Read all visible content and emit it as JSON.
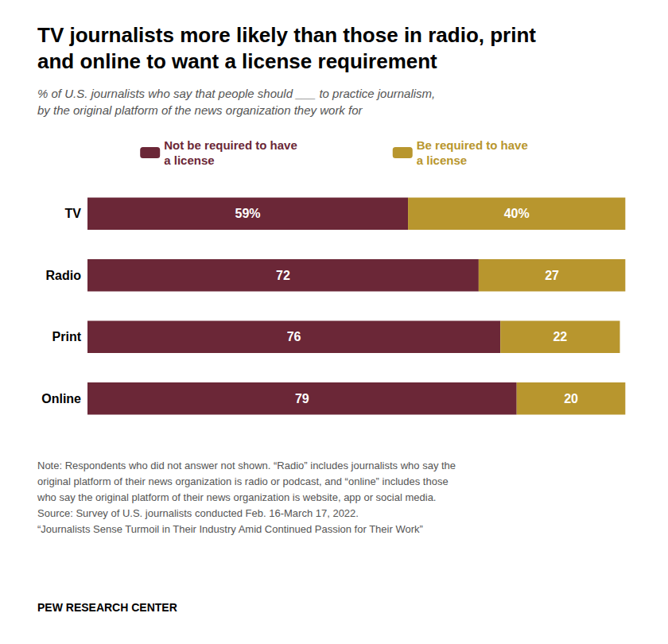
{
  "chart_data": {
    "type": "bar",
    "orientation": "horizontal",
    "stacked": true,
    "title": "TV journalists more likely than those in radio, print\nand online to want a license requirement",
    "subtitle": "% of U.S. journalists who say that people should ___ to practice journalism,\nby the original platform of the news organization they work for",
    "categories": [
      "TV",
      "Radio",
      "Print",
      "Online"
    ],
    "series": [
      {
        "name": "Not be required to have\na license",
        "color": "#6b2737",
        "values": [
          59,
          72,
          76,
          79
        ],
        "value_labels": [
          "59%",
          "72",
          "76",
          "79"
        ]
      },
      {
        "name": "Be required to have\na license",
        "color": "#b8962e",
        "values": [
          40,
          27,
          22,
          20
        ],
        "value_labels": [
          "40%",
          "27",
          "22",
          "20"
        ]
      }
    ],
    "xlim": [
      0,
      101
    ],
    "data_labels": true,
    "tick_labels": "y",
    "grid": false,
    "legend": "top",
    "annotations": [
      "Note: Respondents who did not answer not shown. “Radio” includes journalists who say the\noriginal platform of their news organization is radio or podcast, and “online” includes those\nwho say the original platform of their news organization is website, app or social media.\nSource: Survey of U.S. journalists conducted Feb. 16-March 17, 2022.\n“Journalists Sense Turmoil in Their Industry Amid Continued Passion for Their Work”",
      "PEW RESEARCH CENTER"
    ]
  }
}
